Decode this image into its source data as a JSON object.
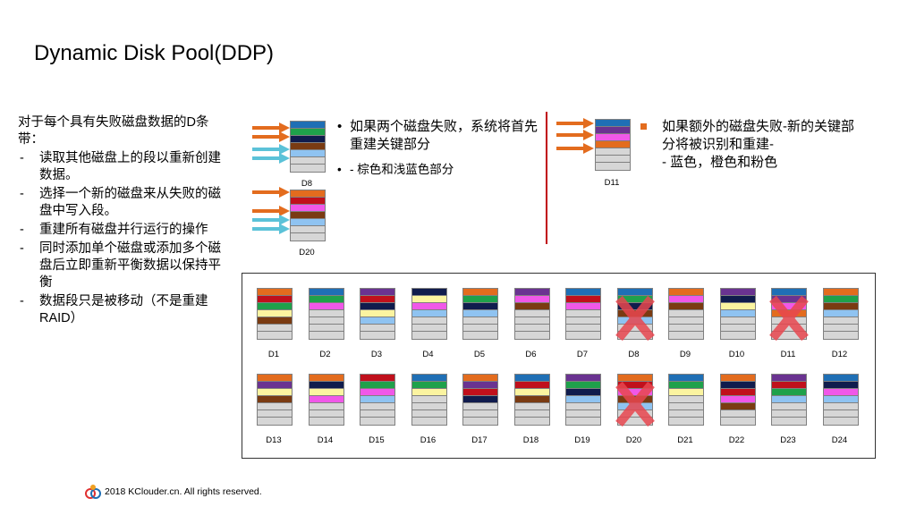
{
  "title": "Dynamic Disk Pool(DDP)",
  "left": {
    "intro": "对于每个具有失败磁盘数据的D条带：",
    "items": [
      "读取其他磁盘上的段以重新创建数据。",
      "选择一个新的磁盘来从失败的磁盘中写入段。",
      "重建所有磁盘并行运行的操作",
      "同时添加单个磁盘或添加多个磁盘后立即重新平衡数据以保持平衡",
      "数据段只是被移动（不是重建RAID）"
    ]
  },
  "colors": {
    "orange": "#e36c1e",
    "blue": "#1f6fb5",
    "green": "#1fa14b",
    "navy": "#101c4d",
    "brown": "#7a3b12",
    "red": "#c0101c",
    "purple": "#6a3391",
    "pink": "#f058e8",
    "yellow": "#fbf4a0",
    "lightblue": "#8fc3f1",
    "gray": "#d6d6d6",
    "cyan": "#5bc2d8",
    "divider": "#c0000b",
    "cross": "#e8474f"
  },
  "panel_left": {
    "disks": [
      {
        "label": "D8",
        "segments": [
          "blue",
          "green",
          "navy",
          "brown",
          "lightblue",
          "gray",
          "gray"
        ]
      },
      {
        "label": "D20",
        "segments": [
          "orange",
          "red",
          "pink",
          "brown",
          "lightblue",
          "gray",
          "gray"
        ]
      }
    ],
    "bullet1": "如果两个磁盘失败，系统将首先重建关键部分",
    "bullet2": "- 棕色和浅蓝色部分"
  },
  "panel_right": {
    "disk": {
      "label": "D11",
      "segments": [
        "blue",
        "purple",
        "pink",
        "orange",
        "gray",
        "gray",
        "gray"
      ]
    },
    "bullet": "如果额外的磁盘失败-新的关键部分将被识别和重建-",
    "bullet_cont": "- 蓝色，橙色和粉色"
  },
  "pool": {
    "rows": [
      [
        {
          "label": "D1",
          "segments": [
            "orange",
            "red",
            "green",
            "yellow",
            "brown",
            "gray",
            "gray"
          ]
        },
        {
          "label": "D2",
          "segments": [
            "blue",
            "green",
            "pink",
            "gray",
            "gray",
            "gray",
            "gray"
          ]
        },
        {
          "label": "D3",
          "segments": [
            "purple",
            "red",
            "navy",
            "yellow",
            "lightblue",
            "gray",
            "gray"
          ]
        },
        {
          "label": "D4",
          "segments": [
            "navy",
            "yellow",
            "pink",
            "lightblue",
            "gray",
            "gray",
            "gray"
          ]
        },
        {
          "label": "D5",
          "segments": [
            "orange",
            "green",
            "navy",
            "lightblue",
            "gray",
            "gray",
            "gray"
          ]
        },
        {
          "label": "D6",
          "segments": [
            "purple",
            "pink",
            "brown",
            "gray",
            "gray",
            "gray",
            "gray"
          ]
        },
        {
          "label": "D7",
          "segments": [
            "blue",
            "red",
            "pink",
            "gray",
            "gray",
            "gray",
            "gray"
          ]
        },
        {
          "label": "D8",
          "segments": [
            "blue",
            "green",
            "navy",
            "brown",
            "lightblue",
            "gray",
            "gray"
          ],
          "failed": true
        },
        {
          "label": "D9",
          "segments": [
            "orange",
            "pink",
            "brown",
            "gray",
            "gray",
            "gray",
            "gray"
          ]
        },
        {
          "label": "D10",
          "segments": [
            "purple",
            "navy",
            "yellow",
            "lightblue",
            "gray",
            "gray",
            "gray"
          ]
        },
        {
          "label": "D11",
          "segments": [
            "blue",
            "purple",
            "pink",
            "orange",
            "gray",
            "gray",
            "gray"
          ],
          "failed": true
        },
        {
          "label": "D12",
          "segments": [
            "orange",
            "green",
            "brown",
            "lightblue",
            "gray",
            "gray",
            "gray"
          ]
        }
      ],
      [
        {
          "label": "D13",
          "segments": [
            "orange",
            "purple",
            "yellow",
            "brown",
            "gray",
            "gray",
            "gray"
          ]
        },
        {
          "label": "D14",
          "segments": [
            "orange",
            "navy",
            "yellow",
            "pink",
            "gray",
            "gray",
            "gray"
          ]
        },
        {
          "label": "D15",
          "segments": [
            "red",
            "green",
            "pink",
            "lightblue",
            "gray",
            "gray",
            "gray"
          ]
        },
        {
          "label": "D16",
          "segments": [
            "blue",
            "green",
            "yellow",
            "gray",
            "gray",
            "gray",
            "gray"
          ]
        },
        {
          "label": "D17",
          "segments": [
            "orange",
            "purple",
            "red",
            "navy",
            "gray",
            "gray",
            "gray"
          ]
        },
        {
          "label": "D18",
          "segments": [
            "blue",
            "red",
            "yellow",
            "brown",
            "gray",
            "gray",
            "gray"
          ]
        },
        {
          "label": "D19",
          "segments": [
            "purple",
            "green",
            "navy",
            "lightblue",
            "gray",
            "gray",
            "gray"
          ]
        },
        {
          "label": "D20",
          "segments": [
            "orange",
            "red",
            "pink",
            "brown",
            "lightblue",
            "gray",
            "gray"
          ],
          "failed": true
        },
        {
          "label": "D21",
          "segments": [
            "blue",
            "green",
            "yellow",
            "gray",
            "gray",
            "gray",
            "gray"
          ]
        },
        {
          "label": "D22",
          "segments": [
            "orange",
            "navy",
            "red",
            "pink",
            "brown",
            "gray",
            "gray"
          ]
        },
        {
          "label": "D23",
          "segments": [
            "purple",
            "red",
            "green",
            "lightblue",
            "gray",
            "gray",
            "gray"
          ]
        },
        {
          "label": "D24",
          "segments": [
            "blue",
            "navy",
            "pink",
            "lightblue",
            "gray",
            "gray",
            "gray"
          ]
        }
      ]
    ]
  },
  "footer": {
    "logo_icon": "kclouder-logo-icon",
    "text": "2018 KClouder.cn. All rights reserved."
  }
}
